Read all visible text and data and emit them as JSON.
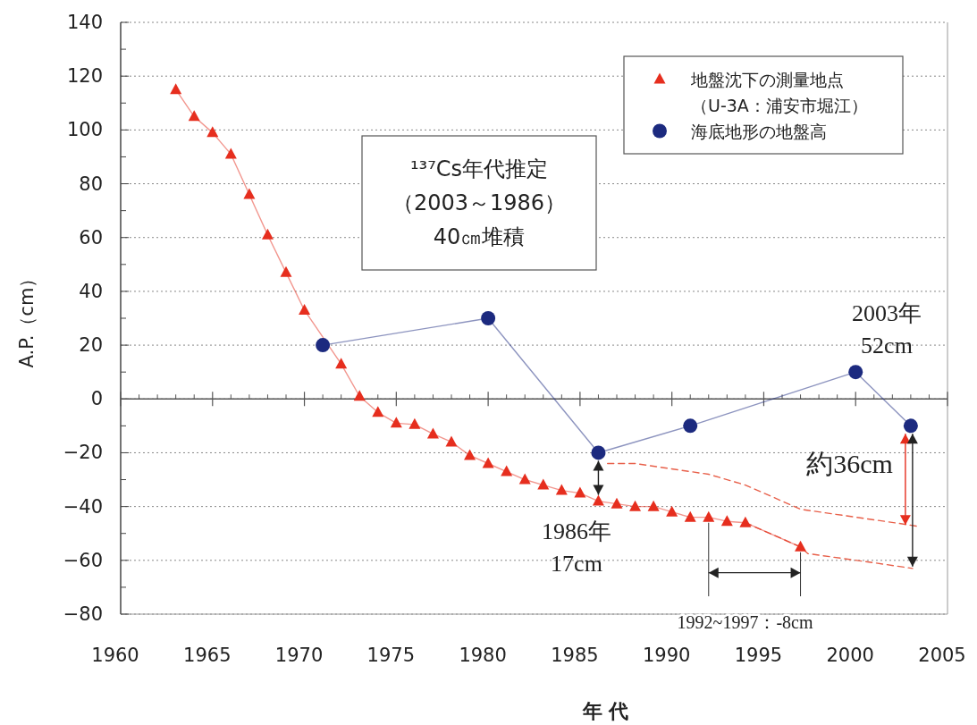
{
  "chart_data": {
    "type": "line",
    "xlabel": "年 代",
    "ylabel": "A.P.（cm）",
    "xlim": [
      1960,
      2005
    ],
    "xticks": [
      1960,
      1965,
      1970,
      1975,
      1980,
      1985,
      1990,
      1995,
      2000,
      2005
    ],
    "ylim": [
      -80,
      140
    ],
    "yticks": [
      -80,
      -60,
      -40,
      -20,
      0,
      20,
      40,
      60,
      80,
      100,
      120,
      140
    ],
    "grid": "y",
    "legend": "top right",
    "series": [
      {
        "name": "地盤沈下の測量地点（U-3A：浦安市堀江）",
        "color": "#e62e1e",
        "marker": "triangle",
        "x": [
          1963,
          1964,
          1965,
          1966,
          1967,
          1968,
          1969,
          1970,
          1972,
          1973,
          1974,
          1975,
          1976,
          1977,
          1978,
          1979,
          1980,
          1981,
          1982,
          1983,
          1984,
          1985,
          1986,
          1987,
          1988,
          1989,
          1990,
          1991,
          1992,
          1993,
          1994,
          1997
        ],
        "values": [
          115,
          105,
          99,
          91,
          76,
          61,
          47,
          33,
          13,
          1,
          -5,
          -9,
          -9.5,
          -13,
          -16,
          -21,
          -24,
          -27,
          -30,
          -32,
          -34,
          -35,
          -38,
          -39,
          -40,
          -40,
          -42,
          -44,
          -44,
          -45.5,
          -46,
          -55
        ]
      },
      {
        "name": "海底地形の地盤高",
        "color": "#1c2a7f",
        "marker": "circle",
        "x": [
          1971,
          1980,
          1986,
          1991,
          2000,
          2003
        ],
        "values": [
          20,
          30,
          -20,
          -10,
          10,
          -10
        ]
      },
      {
        "color": "#e8604a",
        "marker": "none",
        "line_style": "dashed",
        "x": [
          1986.5,
          1988,
          1992,
          1994,
          1997,
          2002.6,
          2003.5
        ],
        "values": [
          -24,
          -24,
          -28,
          -32,
          -41,
          -46.5,
          -47.5
        ]
      },
      {
        "color": "#e8604a",
        "marker": "none",
        "line_style": "dashed",
        "x": [
          1994,
          1997,
          1997.4,
          2001.1,
          2003.1
        ],
        "values": [
          -46,
          -55,
          -57.5,
          -61,
          -63
        ]
      }
    ],
    "ref_lines": [
      {
        "axis": "y",
        "value": 0,
        "color": "#555555"
      }
    ],
    "annotations": [
      "¹³⁷Cs年代推定（2003～1986）40㎝堆積",
      {
        "text": "1992~1997：-8cm",
        "x": 1997,
        "y": -55
      },
      "1986年17cm",
      "2003年52cm",
      {
        "text": "約36cm",
        "x": 2003,
        "y": -10
      }
    ]
  }
}
